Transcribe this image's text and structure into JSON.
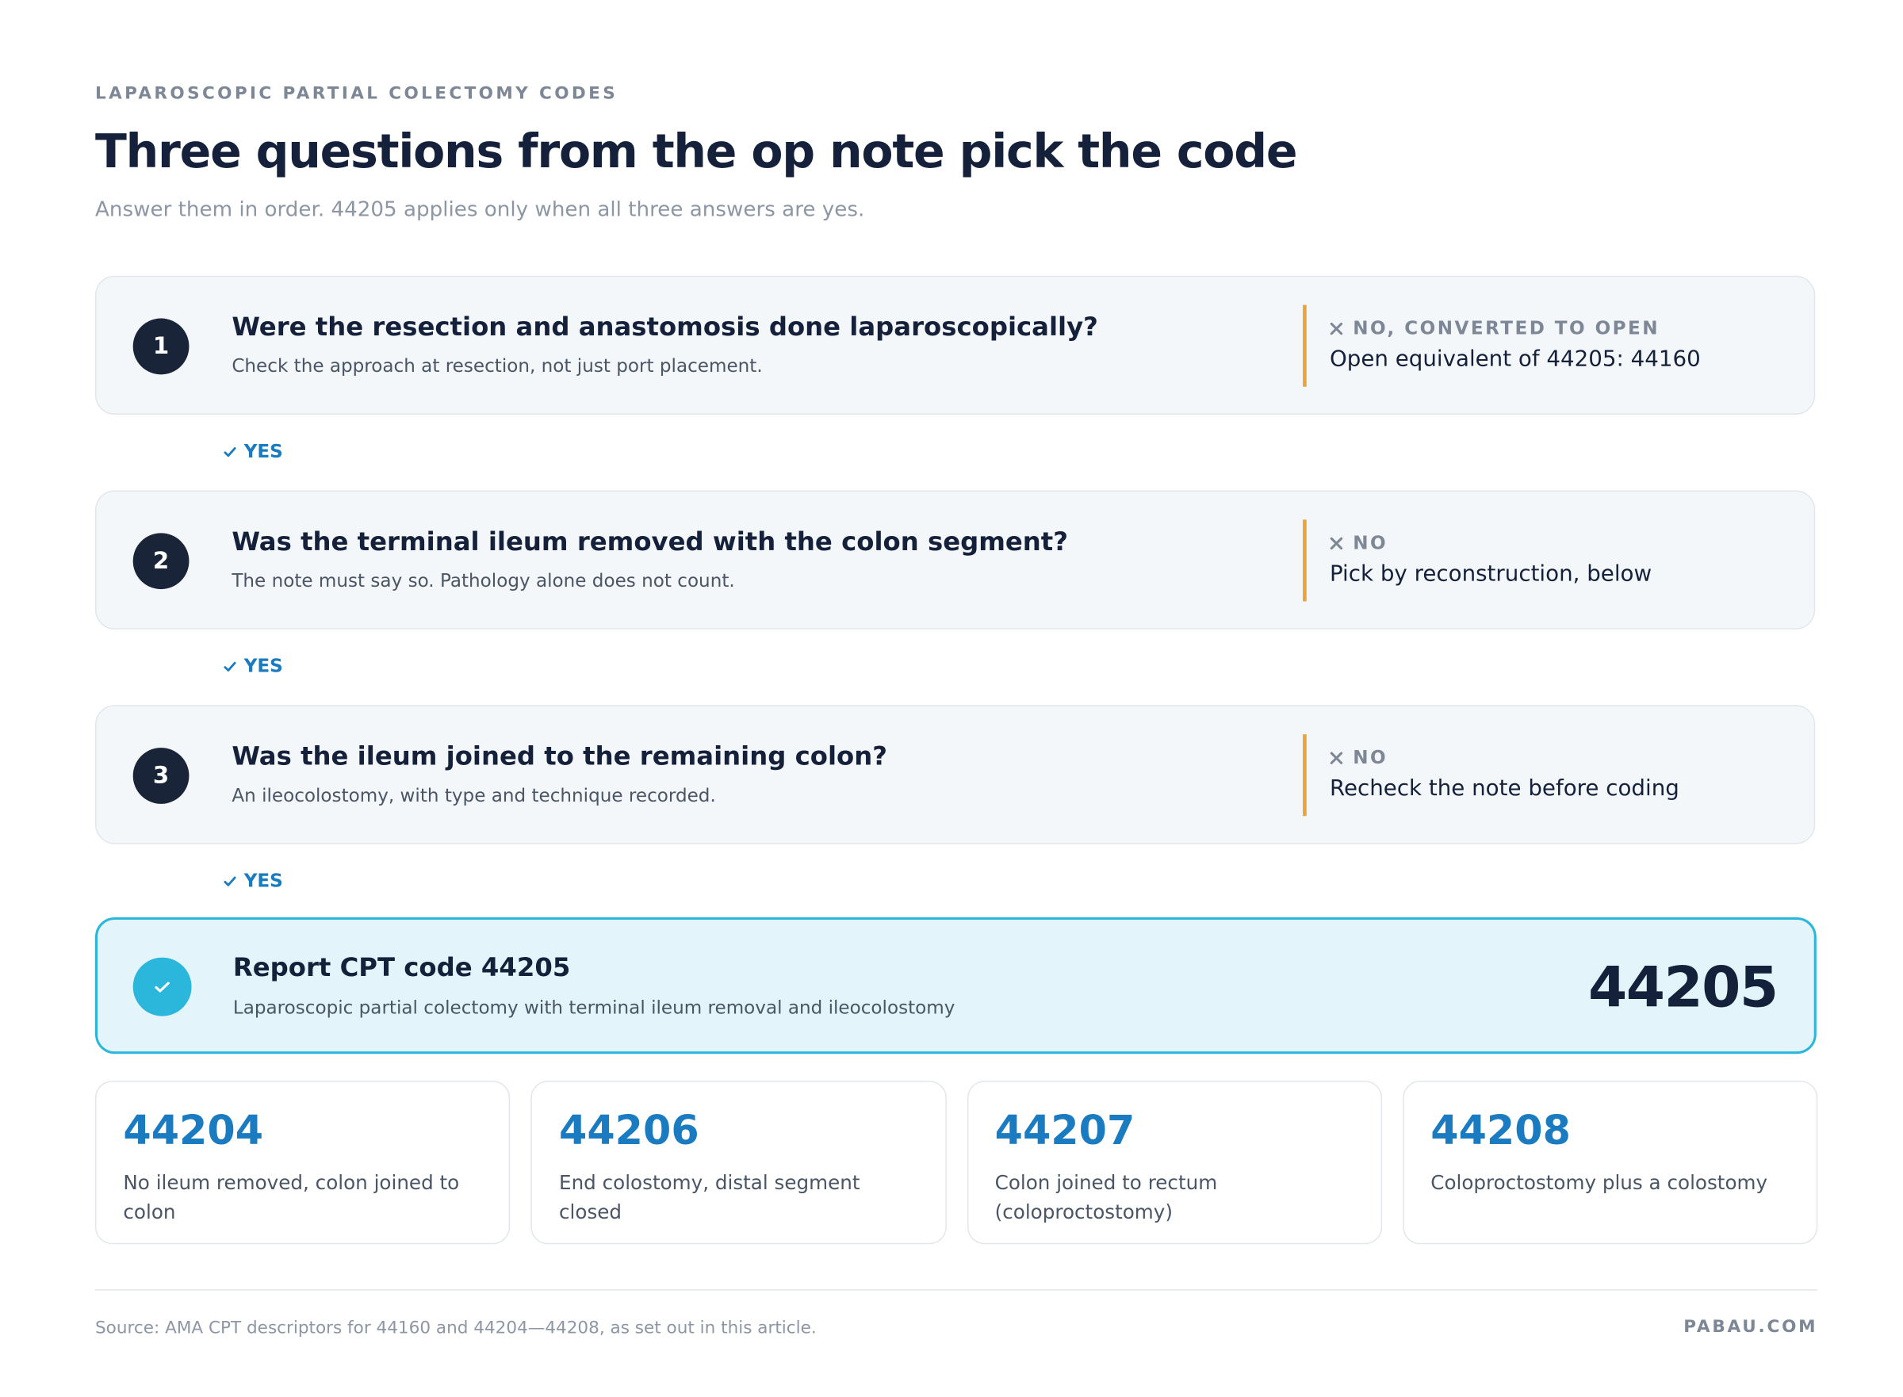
{
  "header": {
    "eyebrow": "LAPAROSCOPIC PARTIAL COLECTOMY CODES",
    "title": "Three questions from the op note pick the code",
    "subtitle": "Answer them in order. 44205 applies only when all three answers are yes."
  },
  "questions": [
    {
      "number": 1,
      "question": "Were the resection and anastomosis done laparoscopically?",
      "hint": "Check the approach at resection, not just port placement.",
      "no_label": "NO, CONVERTED TO OPEN",
      "no_outcome": "Open equivalent of 44205: 44160",
      "yes": "YES"
    },
    {
      "number": 2,
      "question": "Was the terminal ileum removed with the colon segment?",
      "hint": "The note must say so. Pathology alone does not count.",
      "no_label": "NO",
      "no_outcome": "Pick by reconstruction, below",
      "yes": "YES"
    },
    {
      "number": 3,
      "question": "Was the ileum joined to the remaining colon?",
      "hint": "An ileocolostomy, with type and technique recorded.",
      "no_label": "NO",
      "no_outcome": "Recheck the note before coding",
      "yes": "YES"
    }
  ],
  "result": {
    "title": "Report CPT code 44205",
    "description": "Laparoscopic partial colectomy with terminal ileum removal and ileocolostomy",
    "code": "44205"
  },
  "alternatives": [
    {
      "code": "44204",
      "description": "No ileum removed, colon joined to colon"
    },
    {
      "code": "44206",
      "description": "End colostomy, distal segment closed"
    },
    {
      "code": "44207",
      "description": "Colon joined to rectum (coloproctostomy)"
    },
    {
      "code": "44208",
      "description": "Coloproctostomy plus a colostomy"
    }
  ],
  "footer": {
    "source": "Source: AMA CPT descriptors for 44160 and 44204—44208, as set out in this article.",
    "brand": "PABAU.COM"
  }
}
